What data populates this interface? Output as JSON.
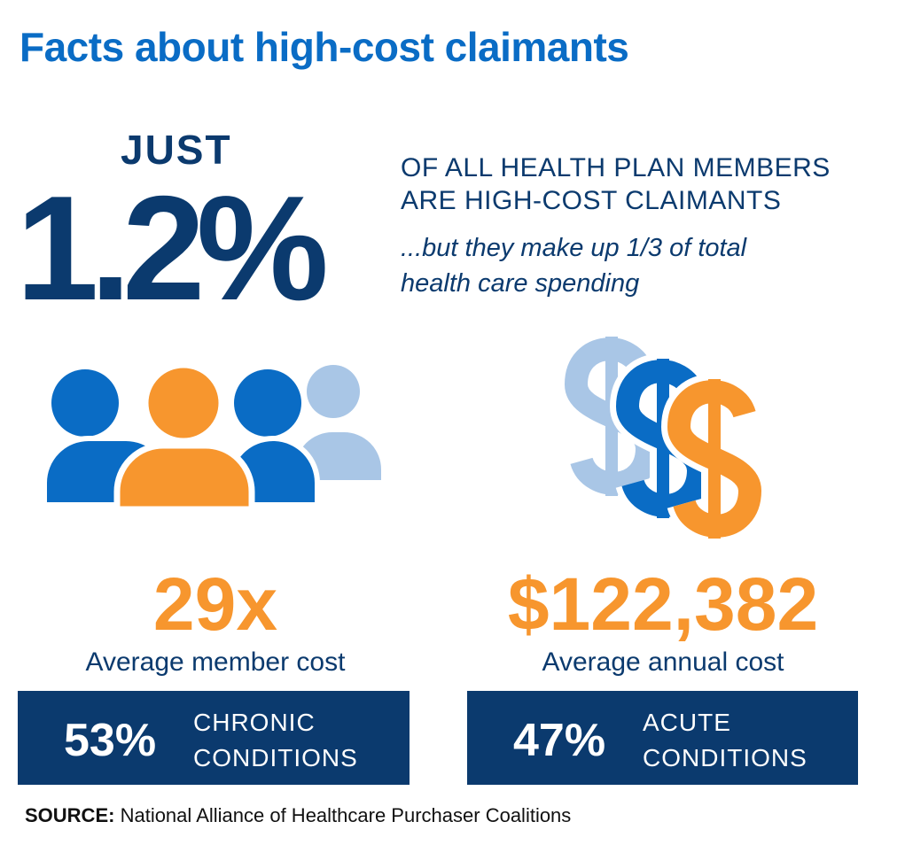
{
  "header": {
    "title": "Facts about high-cost claimants"
  },
  "headline": {
    "prefix": "JUST",
    "figure": "1.2%",
    "statement": [
      "OF ALL HEALTH PLAN MEMBERS",
      "ARE HIGH-COST CLAIMANTS"
    ],
    "note": [
      "...but they make up 1/3 of total",
      "health care spending"
    ]
  },
  "stats": [
    {
      "figure": "29x",
      "caption": "Average member cost",
      "box": {
        "figure": "53%",
        "label": [
          "CHRONIC",
          "CONDITIONS"
        ]
      }
    },
    {
      "figure": "$122,382",
      "caption": "Average annual cost",
      "box": {
        "figure": "47%",
        "label": [
          "ACUTE",
          "CONDITIONS"
        ]
      }
    }
  ],
  "source": {
    "label": "SOURCE:",
    "text": "National Alliance of Healthcare Purchaser Coalitions"
  }
}
